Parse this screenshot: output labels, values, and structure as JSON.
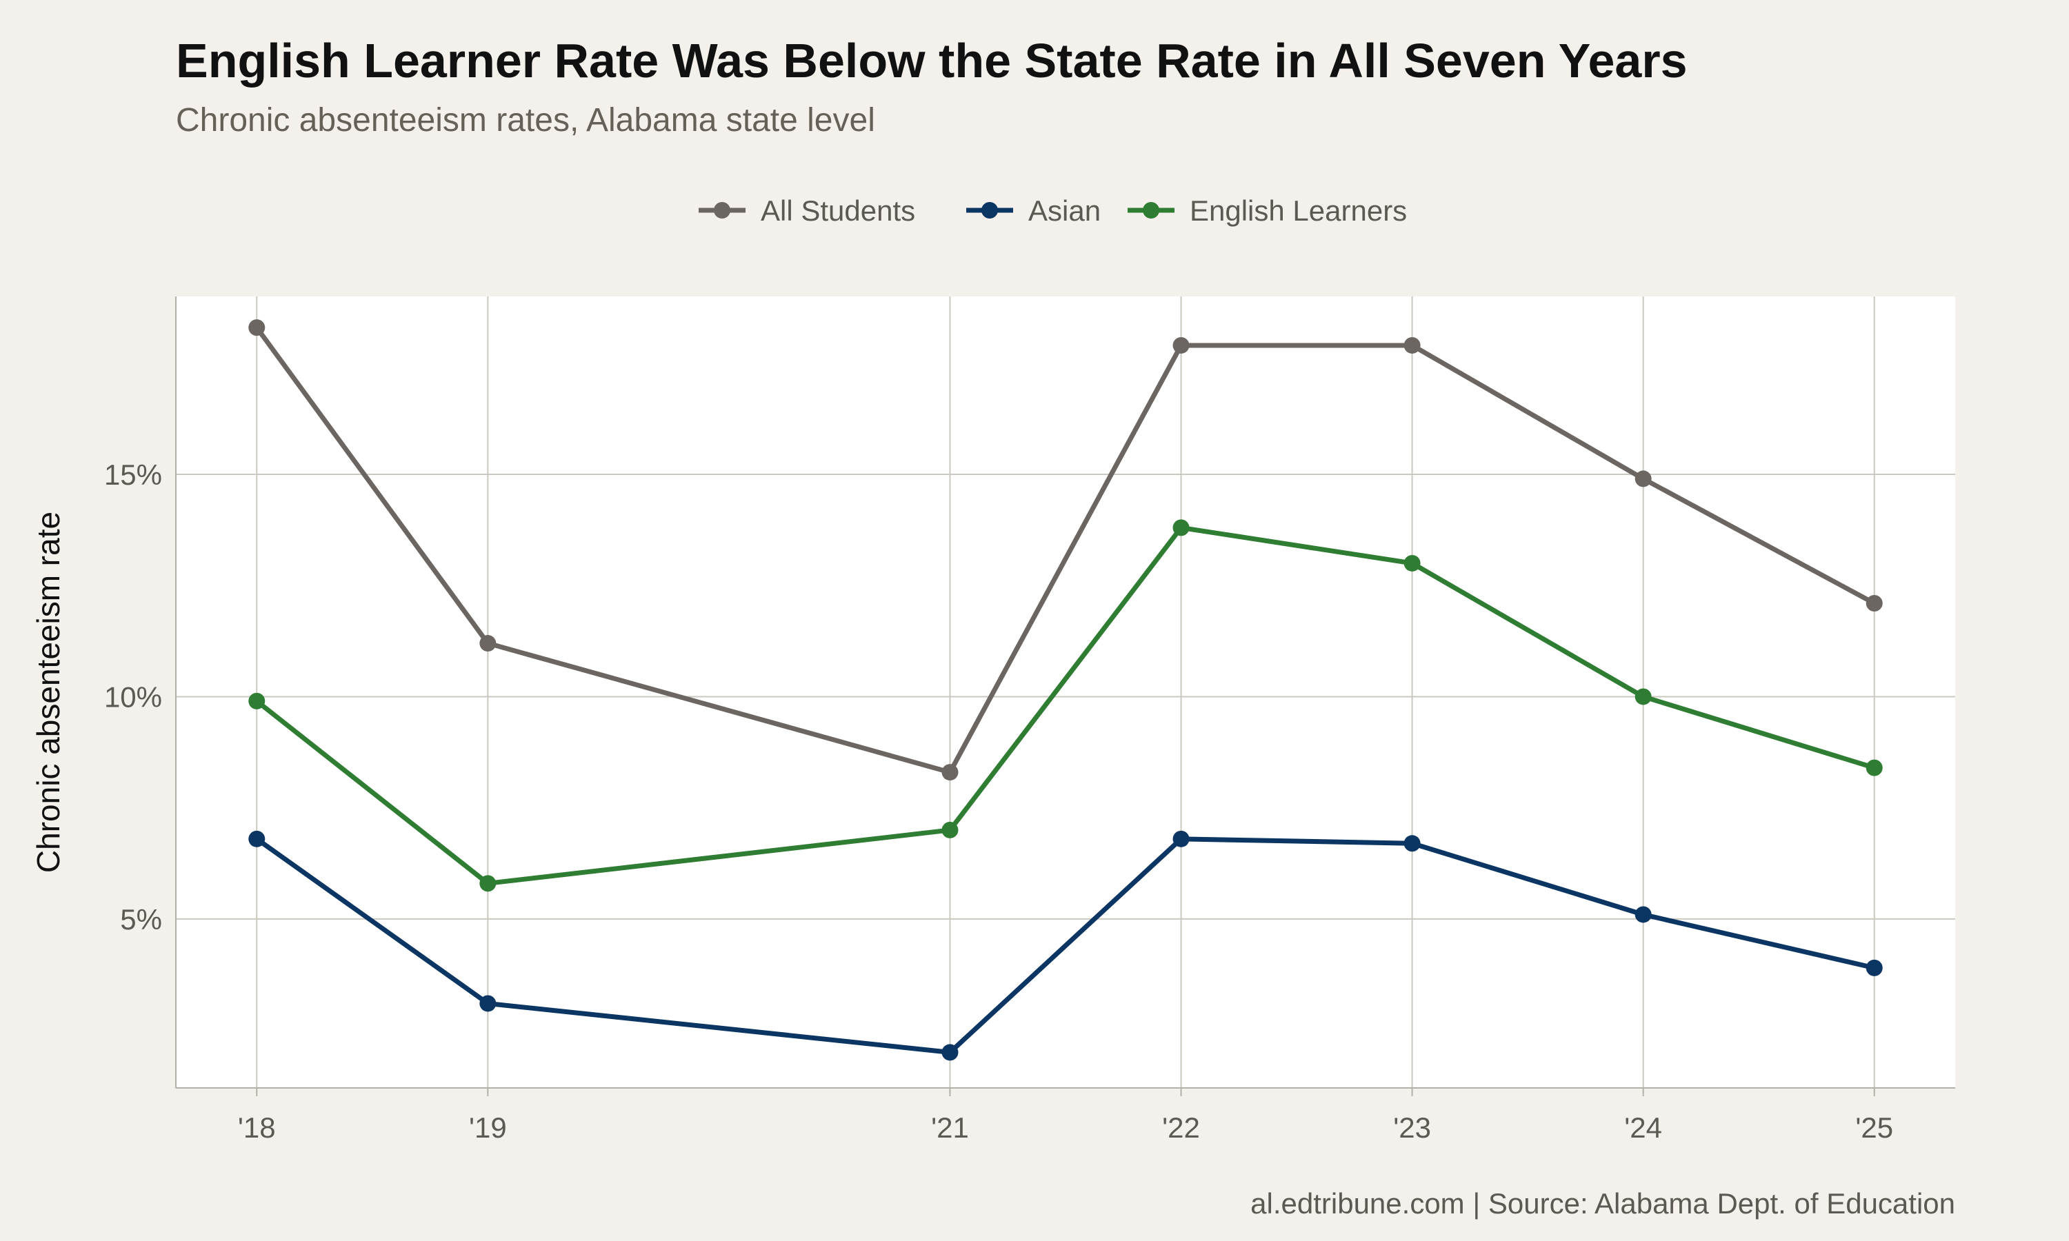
{
  "chart_data": {
    "type": "line",
    "title": "English Learner Rate Was Below the State Rate in All Seven Years",
    "subtitle": "Chronic absenteeism rates, Alabama state level",
    "ylabel": "Chronic absenteeism rate",
    "xlabel": "",
    "caption": "al.edtribune.com | Source: Alabama Dept. of Education",
    "x": [
      2018,
      2019,
      2021,
      2022,
      2023,
      2024,
      2025
    ],
    "x_tick_labels": [
      "'18",
      "'19",
      "'21",
      "'22",
      "'23",
      "'24",
      "'25"
    ],
    "y_ticks": [
      5,
      10,
      15
    ],
    "y_tick_labels": [
      "5%",
      "10%",
      "15%"
    ],
    "xlim": [
      2017.65,
      2025.35
    ],
    "ylim": [
      1.2,
      19.0
    ],
    "grid": true,
    "legend_position": "top",
    "series": [
      {
        "name": "All Students",
        "color": "#6b6661",
        "values": [
          18.3,
          11.2,
          8.3,
          17.9,
          17.9,
          14.9,
          12.1
        ]
      },
      {
        "name": "Asian",
        "color": "#0b3563",
        "values": [
          6.8,
          3.1,
          2.0,
          6.8,
          6.7,
          5.1,
          3.9
        ]
      },
      {
        "name": "English Learners",
        "color": "#2e7d32",
        "values": [
          9.9,
          5.8,
          7.0,
          13.8,
          13.0,
          10.0,
          8.4
        ]
      }
    ]
  }
}
